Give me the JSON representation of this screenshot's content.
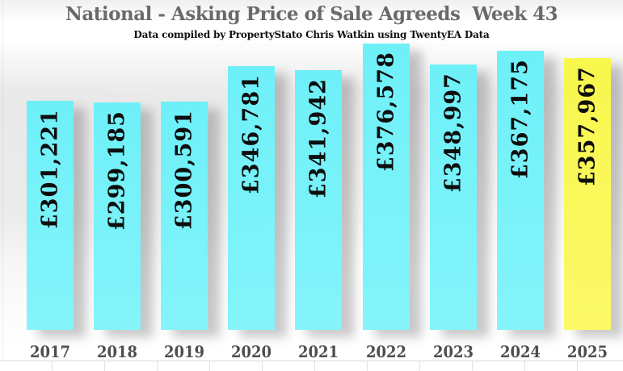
{
  "title": "National - Asking Price of Sale Agreeds  Week 43",
  "subtitle": "Data compiled by PropertyStato Chris Watkin using TwentyEA Data",
  "colors": {
    "bar": "#6ef0f8",
    "bar_gradient_end": "#84f4fa",
    "highlight_bar": "#f8f74d",
    "highlight_gradient_end": "#fbf968",
    "value_label": "#0d0d0d",
    "year_label": "#4e4e4e",
    "title_text": "#6a6a6a"
  },
  "chart_data": {
    "type": "bar",
    "title": "National - Asking Price of Sale Agreeds  Week 43",
    "subtitle": "Data compiled by PropertyStato Chris Watkin using TwentyEA Data",
    "categories": [
      "2017",
      "2018",
      "2019",
      "2020",
      "2021",
      "2022",
      "2023",
      "2024",
      "2025"
    ],
    "values": [
      301221,
      299185,
      300591,
      346781,
      341942,
      376578,
      348997,
      367175,
      357967
    ],
    "labels": [
      "£301,221",
      "£299,185",
      "£300,591",
      "£346,781",
      "£341,942",
      "£376,578",
      "£348,997",
      "£367,175",
      "£357,967"
    ],
    "highlight_index": 8,
    "ylim": [
      0,
      376578
    ],
    "xlabel": "",
    "ylabel": "",
    "grid": false,
    "legend_position": "none",
    "value_label_orientation": "vertical-bottom-to-top"
  }
}
